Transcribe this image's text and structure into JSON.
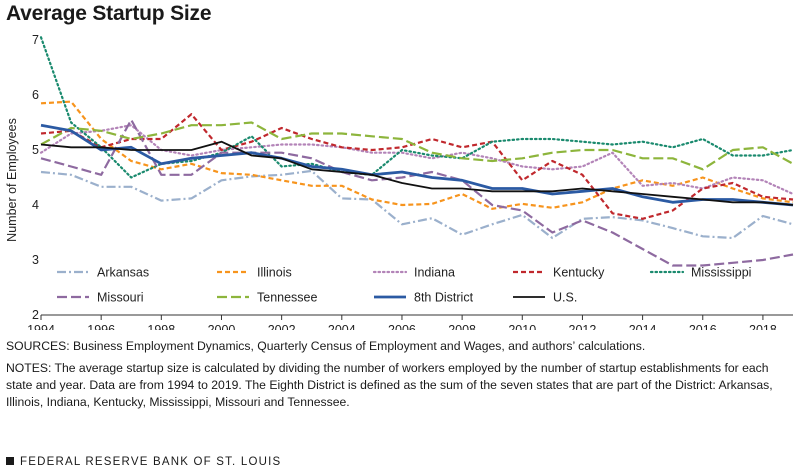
{
  "chart_data": {
    "type": "line",
    "title": "Average Startup Size",
    "xlabel": "",
    "ylabel": "Number of Employees",
    "xlim": [
      1994,
      2019
    ],
    "ylim": [
      2,
      7
    ],
    "x_ticks": [
      1994,
      1996,
      1998,
      2000,
      2002,
      2004,
      2006,
      2008,
      2010,
      2012,
      2014,
      2016,
      2018
    ],
    "y_ticks": [
      2,
      3,
      4,
      5,
      6,
      7
    ],
    "x": [
      1994,
      1995,
      1996,
      1997,
      1998,
      1999,
      2000,
      2001,
      2002,
      2003,
      2004,
      2005,
      2006,
      2007,
      2008,
      2009,
      2010,
      2011,
      2012,
      2013,
      2014,
      2015,
      2016,
      2017,
      2018,
      2019
    ],
    "series": [
      {
        "name": "Arkansas",
        "color": "#9bb0cc",
        "dash": "dashdot",
        "values": [
          4.6,
          4.55,
          4.33,
          4.33,
          4.08,
          4.12,
          4.45,
          4.52,
          4.55,
          4.62,
          4.12,
          4.1,
          3.65,
          3.76,
          3.46,
          3.65,
          3.82,
          3.4,
          3.75,
          3.78,
          3.72,
          3.58,
          3.43,
          3.4,
          3.8,
          3.65
        ]
      },
      {
        "name": "Illinois",
        "color": "#f7941d",
        "dash": "dash",
        "values": [
          5.85,
          5.88,
          5.2,
          4.8,
          4.65,
          4.75,
          4.58,
          4.55,
          4.45,
          4.35,
          4.35,
          4.1,
          4.0,
          4.02,
          4.2,
          3.93,
          4.02,
          3.95,
          4.05,
          4.3,
          4.45,
          4.35,
          4.5,
          4.3,
          4.12,
          4.05
        ]
      },
      {
        "name": "Indiana",
        "color": "#b384b8",
        "dash": "dot",
        "values": [
          4.95,
          5.3,
          5.35,
          5.45,
          5.0,
          4.9,
          5.0,
          5.05,
          5.1,
          5.1,
          5.05,
          4.95,
          4.95,
          4.85,
          4.95,
          4.85,
          4.7,
          4.65,
          4.7,
          4.95,
          4.35,
          4.4,
          4.3,
          4.5,
          4.45,
          4.2
        ]
      },
      {
        "name": "Kentucky",
        "color": "#c0282d",
        "dash": "dash",
        "values": [
          5.3,
          5.35,
          5.05,
          5.2,
          5.2,
          5.65,
          5.0,
          5.15,
          5.4,
          5.2,
          5.05,
          5.0,
          5.05,
          5.2,
          5.05,
          5.15,
          4.45,
          4.8,
          4.55,
          3.85,
          3.75,
          3.9,
          4.3,
          4.4,
          4.15,
          4.1
        ]
      },
      {
        "name": "Mississippi",
        "color": "#1a8a6e",
        "dash": "dot",
        "values": [
          7.05,
          5.5,
          5.05,
          4.5,
          4.75,
          4.8,
          4.95,
          5.25,
          4.7,
          4.75,
          4.6,
          4.55,
          5.0,
          4.9,
          4.85,
          5.15,
          5.2,
          5.2,
          5.15,
          5.1,
          5.15,
          5.05,
          5.2,
          4.9,
          4.9,
          5.0
        ]
      },
      {
        "name": "Missouri",
        "color": "#8e6aa0",
        "dash": "longdash",
        "values": [
          4.85,
          4.7,
          4.55,
          5.55,
          4.55,
          4.55,
          4.95,
          4.95,
          4.95,
          4.85,
          4.6,
          4.45,
          4.5,
          4.6,
          4.45,
          4.0,
          3.9,
          3.5,
          3.72,
          3.5,
          3.2,
          2.9,
          2.9,
          2.95,
          3.0,
          3.1
        ]
      },
      {
        "name": "Tennessee",
        "color": "#8db53c",
        "dash": "longdash",
        "values": [
          5.1,
          5.4,
          5.35,
          5.2,
          5.3,
          5.45,
          5.45,
          5.5,
          5.2,
          5.3,
          5.3,
          5.25,
          5.2,
          4.95,
          4.85,
          4.8,
          4.85,
          4.95,
          5.0,
          5.0,
          4.85,
          4.85,
          4.65,
          5.0,
          5.05,
          4.75
        ]
      },
      {
        "name": "8th District",
        "color": "#2b5aa3",
        "dash": "solid",
        "values": [
          5.45,
          5.35,
          5.0,
          5.05,
          4.75,
          4.85,
          4.9,
          4.95,
          4.85,
          4.7,
          4.65,
          4.55,
          4.6,
          4.5,
          4.45,
          4.3,
          4.3,
          4.2,
          4.25,
          4.3,
          4.15,
          4.05,
          4.1,
          4.1,
          4.05,
          4.0
        ]
      },
      {
        "name": "U.S.",
        "color": "#111111",
        "dash": "solid",
        "values": [
          5.1,
          5.05,
          5.05,
          5.0,
          5.0,
          5.0,
          5.15,
          4.9,
          4.85,
          4.65,
          4.6,
          4.55,
          4.4,
          4.3,
          4.3,
          4.25,
          4.25,
          4.25,
          4.3,
          4.25,
          4.2,
          4.15,
          4.1,
          4.05,
          4.05,
          4.0
        ]
      }
    ],
    "legend": [
      [
        "Arkansas",
        "Illinois",
        "Indiana",
        "Kentucky",
        "Mississippi"
      ],
      [
        "Missouri",
        "Tennessee",
        "8th District",
        "U.S."
      ]
    ]
  },
  "sources": "SOURCES: Business Employment Dynamics, Quarterly Census of Employment and Wages, and authors’ calculations.",
  "notes": "NOTES: The average startup size is calculated by dividing the number of workers employed by the number of startup establishments for each state and year. Data are from 1994 to 2019. The Eighth District is defined as the sum of the seven states that are part of the District: Arkansas, Illinois, Indiana, Kentucky, Mississippi, Missouri and Tennessee.",
  "footer": "FEDERAL RESERVE BANK OF ST. LOUIS"
}
